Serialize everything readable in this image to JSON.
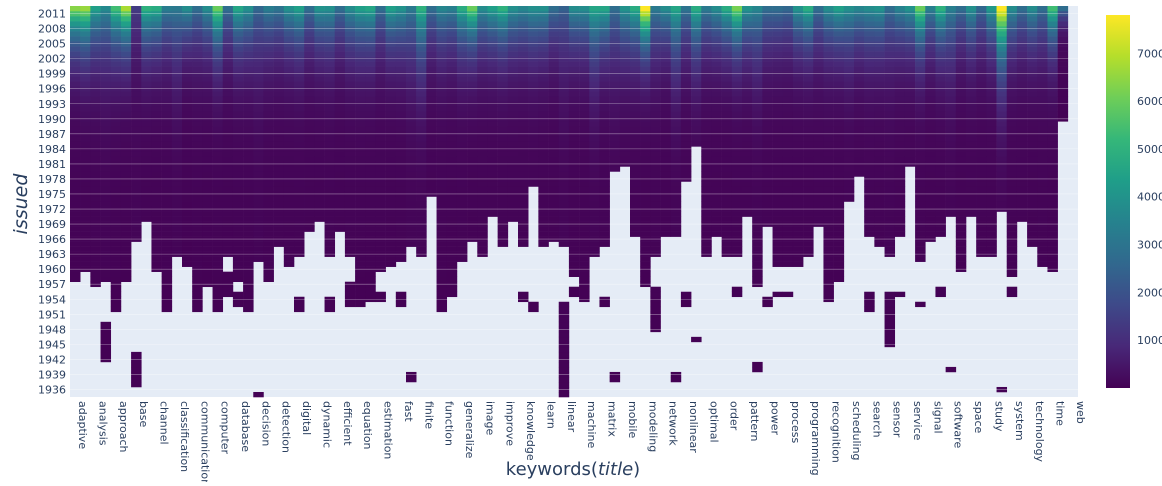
{
  "chart_data": {
    "type": "heatmap",
    "title": "",
    "xlabel_prefix": "keywords(",
    "xlabel_italic": "title",
    "xlabel_suffix": ")",
    "ylabel": "issued",
    "x_categories": [
      "adaptive",
      "",
      "analysis",
      "",
      "approach",
      "",
      "base",
      "",
      "channel",
      "",
      "classification",
      "",
      "communication",
      "",
      "computer",
      "",
      "database",
      "",
      "decision",
      "",
      "detection",
      "",
      "digital",
      "",
      "dynamic",
      "",
      "efficient",
      "",
      "equation",
      "",
      "estimation",
      "",
      "fast",
      "",
      "finite",
      "",
      "function",
      "",
      "generalize",
      "",
      "image",
      "",
      "improve",
      "",
      "knowledge",
      "",
      "learn",
      "",
      "linear",
      "",
      "machine",
      "",
      "matrix",
      "",
      "mobile",
      "",
      "modeling",
      "",
      "network",
      "",
      "nonlinear",
      "",
      "optimal",
      "",
      "order",
      "",
      "pattern",
      "",
      "power",
      "",
      "process",
      "",
      "programming",
      "",
      "recognition",
      "",
      "scheduling",
      "",
      "search",
      "",
      "sensor",
      "",
      "service",
      "",
      "signal",
      "",
      "software",
      "",
      "space",
      "",
      "study",
      "",
      "system",
      "",
      "technology",
      "",
      "time",
      "",
      "web"
    ],
    "y_range": [
      1935,
      2012
    ],
    "y_ticks": [
      1936,
      1939,
      1942,
      1945,
      1948,
      1951,
      1954,
      1957,
      1960,
      1963,
      1966,
      1969,
      1972,
      1975,
      1978,
      1981,
      1984,
      1987,
      1990,
      1993,
      1996,
      1999,
      2002,
      2005,
      2008,
      2011
    ],
    "z_range": [
      0,
      7800
    ],
    "colorbar_ticks": [
      1000,
      2000,
      3000,
      4000,
      5000,
      6000,
      7000
    ],
    "colorscale": [
      "#440154",
      "#482878",
      "#3e4989",
      "#31688e",
      "#26828e",
      "#1f9e89",
      "#35b779",
      "#6ece58",
      "#b5de2b",
      "#fde725"
    ],
    "missing_color": "#e5ecf6",
    "start_years": [
      1958,
      1954,
      1950,
      1942,
      1952,
      1956,
      1937,
      1955,
      1957,
      1952,
      1936,
      1961,
      1952,
      1957,
      1952,
      1955,
      1953,
      1952,
      1935,
      1952,
      1953,
      1954,
      1952,
      1955,
      1956,
      1952,
      1956,
      1953,
      1953,
      1954,
      1954,
      1956,
      1953,
      1938,
      1937,
      1956,
      1952,
      1955,
      1953,
      1957,
      1955,
      1956,
      1954,
      1954,
      1954,
      1952,
      1955,
      1955,
      1935,
      1955,
      1954,
      1937,
      1953,
      1938,
      1950,
      1953,
      1957,
      1948,
      1958,
      1938,
      1953,
      1946,
      1955,
      1957,
      1958,
      1955,
      1954,
      1940,
      1953,
      1955,
      1955,
      1956,
      1956,
      1953,
      1954,
      1956,
      1948,
      1956,
      1952,
      1954,
      1945,
      1955,
      1957,
      1953,
      1957,
      1955,
      1940,
      1957,
      1954,
      1955,
      1955,
      1936,
      1955,
      1955,
      1957,
      1953,
      1958,
      1990
    ],
    "peak_values": [
      6200,
      6400,
      4200,
      3500,
      5200,
      6600,
      1200,
      4800,
      4600,
      3100,
      3000,
      3600,
      2600,
      3600,
      5800,
      2600,
      4400,
      3700,
      2400,
      3100,
      2800,
      3700,
      4200,
      2600,
      3800,
      3700,
      2600,
      3600,
      4200,
      4400,
      2600,
      4200,
      3800,
      3000,
      4800,
      2600,
      3400,
      3200,
      4600,
      5800,
      3600,
      4200,
      4800,
      3700,
      3400,
      3700,
      3700,
      2600,
      2200,
      3600,
      3600,
      4400,
      4400,
      2600,
      3800,
      4600,
      7800,
      3000,
      3600,
      4400,
      2800,
      4600,
      3000,
      3600,
      4600,
      6000,
      3800,
      3400,
      2600,
      2600,
      2400,
      3800,
      4600,
      2600,
      3600,
      4200,
      3700,
      3400,
      3600,
      3800,
      2600,
      3300,
      3800,
      5800,
      3200,
      4800,
      3200,
      2600,
      3700,
      2400,
      4000,
      7800,
      3600,
      2600,
      3600,
      2600,
      5200,
      2600
    ],
    "gaps": [
      [
        1,
        1948,
        1959
      ],
      [
        2,
        1937,
        1956
      ],
      [
        3,
        1950,
        1957
      ],
      [
        5,
        1950,
        1957
      ],
      [
        6,
        1944,
        1965
      ],
      [
        7,
        1942,
        1969
      ],
      [
        8,
        1946,
        1959
      ],
      [
        10,
        1936,
        1962
      ],
      [
        11,
        1952,
        1957
      ],
      [
        15,
        1960,
        1962
      ],
      [
        16,
        1956,
        1957
      ],
      [
        18,
        1936,
        1961
      ],
      [
        19,
        1952,
        1957
      ],
      [
        20,
        1940,
        1964
      ],
      [
        21,
        1947,
        1960
      ],
      [
        22,
        1955,
        1962
      ],
      [
        23,
        1955,
        1967
      ],
      [
        24,
        1955,
        1969
      ],
      [
        25,
        1955,
        1962
      ],
      [
        26,
        1956,
        1967
      ],
      [
        27,
        1958,
        1962
      ],
      [
        30,
        1956,
        1959
      ],
      [
        31,
        1954,
        1960
      ],
      [
        32,
        1956,
        1961
      ],
      [
        33,
        1940,
        1964
      ],
      [
        34,
        1936,
        1962
      ],
      [
        35,
        1942,
        1974
      ],
      [
        38,
        1952,
        1961
      ],
      [
        39,
        1956,
        1965
      ],
      [
        40,
        1954,
        1962
      ],
      [
        41,
        1953,
        1970
      ],
      [
        42,
        1954,
        1964
      ],
      [
        43,
        1954,
        1969
      ],
      [
        44,
        1956,
        1964
      ],
      [
        45,
        1954,
        1976
      ],
      [
        46,
        1954,
        1964
      ],
      [
        47,
        1948,
        1965
      ],
      [
        48,
        1954,
        1964
      ],
      [
        49,
        1957,
        1958
      ],
      [
        51,
        1937,
        1962
      ],
      [
        52,
        1955,
        1964
      ],
      [
        53,
        1940,
        1979
      ],
      [
        54,
        1948,
        1980
      ],
      [
        55,
        1952,
        1966
      ],
      [
        57,
        1957,
        1962
      ],
      [
        58,
        1955,
        1966
      ],
      [
        59,
        1940,
        1966
      ],
      [
        60,
        1956,
        1977
      ],
      [
        61,
        1947,
        1984
      ],
      [
        62,
        1939,
        1962
      ],
      [
        63,
        1955,
        1966
      ],
      [
        64,
        1945,
        1962
      ],
      [
        65,
        1957,
        1962
      ],
      [
        66,
        1948,
        1970
      ],
      [
        67,
        1942,
        1956
      ],
      [
        68,
        1955,
        1968
      ],
      [
        69,
        1956,
        1960
      ],
      [
        70,
        1956,
        1960
      ],
      [
        71,
        1954,
        1960
      ],
      [
        72,
        1954,
        1962
      ],
      [
        73,
        1946,
        1968
      ],
      [
        75,
        1956,
        1957
      ],
      [
        76,
        1948,
        1973
      ],
      [
        77,
        1956,
        1978
      ],
      [
        78,
        1956,
        1966
      ],
      [
        79,
        1945,
        1964
      ],
      [
        80,
        1956,
        1962
      ],
      [
        81,
        1956,
        1966
      ],
      [
        82,
        1955,
        1980
      ],
      [
        83,
        1954,
        1961
      ],
      [
        84,
        1943,
        1965
      ],
      [
        85,
        1957,
        1966
      ],
      [
        86,
        1941,
        1970
      ],
      [
        87,
        1957,
        1959
      ],
      [
        88,
        1942,
        1970
      ],
      [
        89,
        1955,
        1962
      ],
      [
        90,
        1955,
        1962
      ],
      [
        91,
        1937,
        1971
      ],
      [
        92,
        1957,
        1958
      ],
      [
        93,
        1942,
        1969
      ],
      [
        94,
        1943,
        1964
      ],
      [
        95,
        1946,
        1960
      ],
      [
        96,
        1952,
        1959
      ],
      [
        97,
        1980,
        1989
      ]
    ]
  }
}
